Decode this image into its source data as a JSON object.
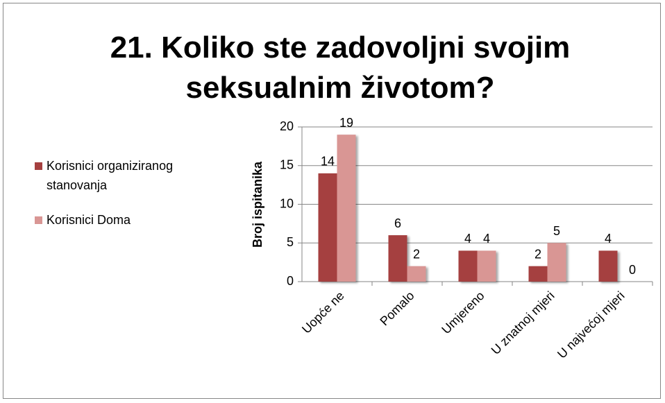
{
  "chart_data": {
    "type": "bar",
    "title": "21. Koliko ste zadovoljni svojim seksualnim životom?",
    "ylabel": "Broj ispitanika",
    "categories": [
      "Uopće ne",
      "Pomalo",
      "Umjereno",
      "U znatnoj mjeri",
      "U najvećoj mjeri"
    ],
    "series": [
      {
        "name": "Korisnici organiziranog stanovanja",
        "color": "#a5403f",
        "values": [
          14,
          6,
          4,
          2,
          4
        ]
      },
      {
        "name": "Korisnici Doma",
        "color": "#d99694",
        "values": [
          19,
          2,
          4,
          5,
          0
        ]
      }
    ],
    "ylim": [
      0,
      20
    ],
    "yticks": [
      0,
      5,
      10,
      15,
      20
    ],
    "grid": true,
    "legend": "left"
  }
}
